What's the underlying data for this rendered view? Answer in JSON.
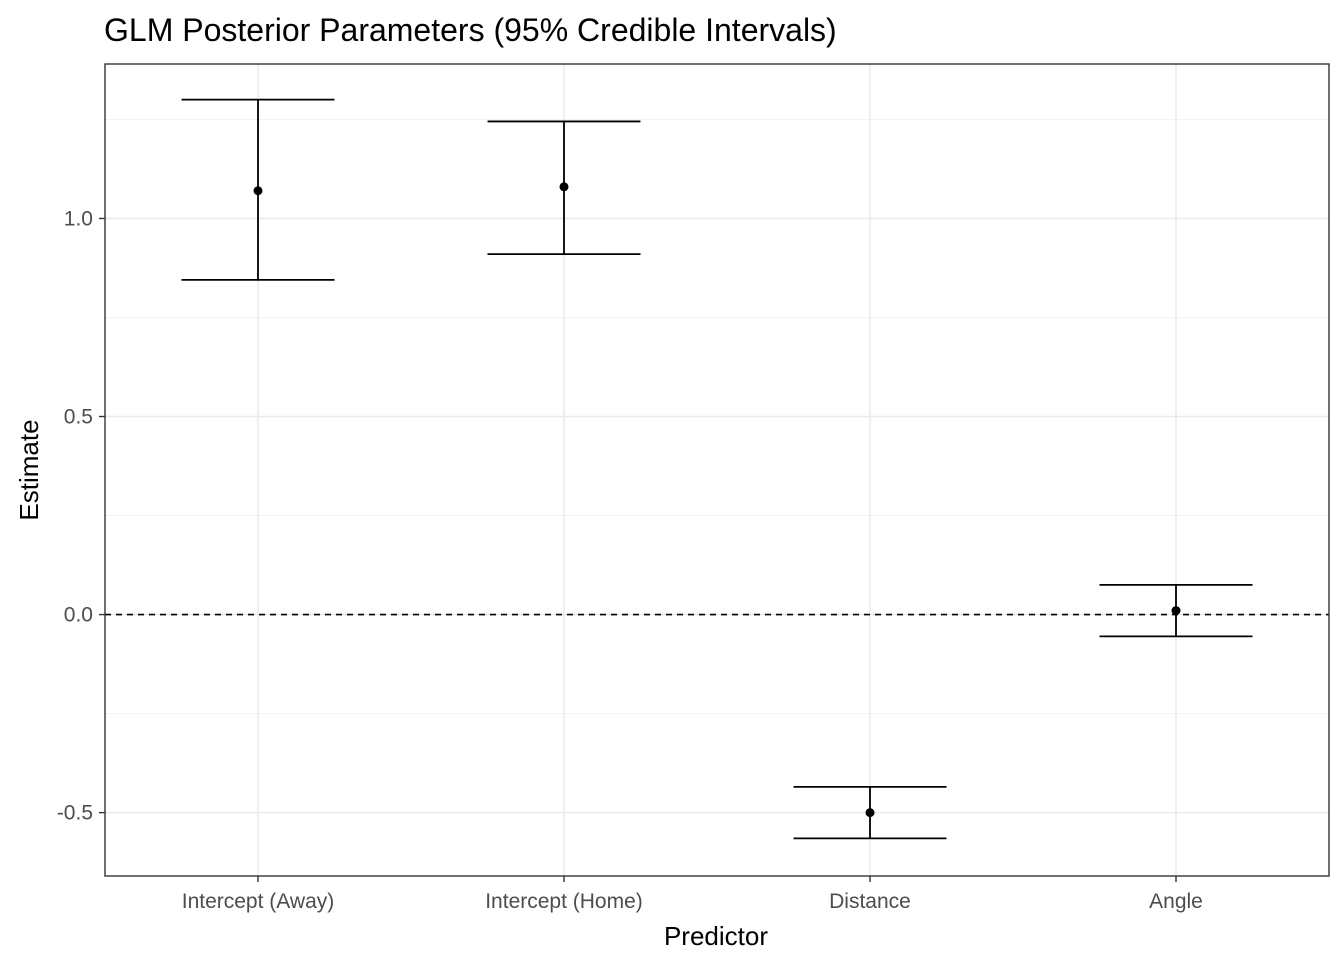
{
  "chart_data": {
    "type": "errorbar",
    "title": "GLM Posterior Parameters (95% Credible Intervals)",
    "xlabel": "Predictor",
    "ylabel": "Estimate",
    "categories": [
      "Intercept (Away)",
      "Intercept (Home)",
      "Distance",
      "Angle"
    ],
    "estimates": [
      1.07,
      1.08,
      -0.5,
      0.01
    ],
    "lower": [
      0.845,
      0.91,
      -0.565,
      -0.055
    ],
    "upper": [
      1.3,
      1.245,
      -0.435,
      0.075
    ],
    "ylim": [
      -0.66,
      1.39
    ],
    "y_ticks": [
      -0.5,
      0.0,
      0.5,
      1.0
    ],
    "y_tick_labels": [
      "-0.5",
      "0.0",
      "0.5",
      "1.0"
    ],
    "reference_line": {
      "y": 0,
      "style": "dashed"
    },
    "grid": true,
    "legend": "none",
    "colors": {
      "marks": "#000000",
      "grid": "#ebebeb",
      "panel_border": "#333333",
      "tick_text": "#4d4d4d"
    }
  }
}
